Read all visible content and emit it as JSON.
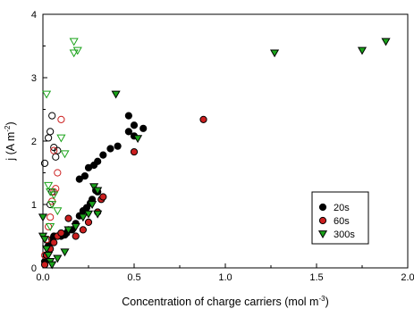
{
  "chart_data": {
    "type": "scatter",
    "xlabel": "Concentration of charge carriers (mol m",
    "xlabel_sup": "-3",
    "xlabel_end": ")",
    "ylabel": "j (A m",
    "ylabel_sup": "-2",
    "ylabel_end": ")",
    "xlim": [
      0,
      2.0
    ],
    "ylim": [
      0,
      4
    ],
    "xticks": [
      "0.0",
      "0.5",
      "1.0",
      "1.5",
      "2.0"
    ],
    "xtick_values": [
      0,
      0.5,
      1.0,
      1.5,
      2.0
    ],
    "yticks": [
      "0",
      "1",
      "2",
      "3",
      "4"
    ],
    "ytick_values": [
      0,
      1,
      2,
      3,
      4
    ],
    "legend_position": "right",
    "series": [
      {
        "name": "20s",
        "marker": "circle",
        "color": "#000000",
        "filled": [
          [
            0.01,
            0.1
          ],
          [
            0.02,
            0.2
          ],
          [
            0.03,
            0.35
          ],
          [
            0.05,
            0.45
          ],
          [
            0.06,
            0.5
          ],
          [
            0.08,
            0.5
          ],
          [
            0.1,
            0.5
          ],
          [
            0.12,
            0.52
          ],
          [
            0.13,
            0.55
          ],
          [
            0.14,
            0.6
          ],
          [
            0.16,
            0.6
          ],
          [
            0.18,
            0.7
          ],
          [
            0.2,
            0.82
          ],
          [
            0.22,
            0.9
          ],
          [
            0.24,
            0.95
          ],
          [
            0.26,
            1.02
          ],
          [
            0.27,
            1.08
          ],
          [
            0.29,
            1.22
          ],
          [
            0.3,
            1.2
          ],
          [
            0.2,
            1.4
          ],
          [
            0.23,
            1.45
          ],
          [
            0.25,
            1.58
          ],
          [
            0.28,
            1.62
          ],
          [
            0.3,
            1.68
          ],
          [
            0.33,
            1.78
          ],
          [
            0.37,
            1.88
          ],
          [
            0.41,
            1.92
          ],
          [
            0.47,
            2.15
          ],
          [
            0.5,
            2.08
          ],
          [
            0.5,
            2.25
          ],
          [
            0.47,
            2.4
          ],
          [
            0.55,
            2.2
          ]
        ],
        "open": [
          [
            0.01,
            1.65
          ],
          [
            0.03,
            2.05
          ],
          [
            0.04,
            2.15
          ],
          [
            0.05,
            2.4
          ],
          [
            0.06,
            1.9
          ],
          [
            0.07,
            1.75
          ],
          [
            0.08,
            1.85
          ],
          [
            0.05,
            1.2
          ],
          [
            0.04,
            1.0
          ]
        ]
      },
      {
        "name": "60s",
        "marker": "circle",
        "color": "#cc1f1f",
        "filled": [
          [
            0.01,
            0.05
          ],
          [
            0.02,
            0.2
          ],
          [
            0.04,
            0.3
          ],
          [
            0.06,
            0.4
          ],
          [
            0.08,
            0.5
          ],
          [
            0.1,
            0.55
          ],
          [
            0.14,
            0.78
          ],
          [
            0.18,
            0.5
          ],
          [
            0.22,
            0.6
          ],
          [
            0.25,
            0.72
          ],
          [
            0.3,
            0.88
          ],
          [
            0.32,
            1.08
          ],
          [
            0.33,
            1.12
          ],
          [
            0.5,
            1.83
          ],
          [
            0.88,
            2.34
          ]
        ],
        "open": [
          [
            0.01,
            0.2
          ],
          [
            0.02,
            0.45
          ],
          [
            0.03,
            0.65
          ],
          [
            0.04,
            0.8
          ],
          [
            0.05,
            1.05
          ],
          [
            0.06,
            1.2
          ],
          [
            0.07,
            1.25
          ],
          [
            0.08,
            1.5
          ],
          [
            0.06,
            1.85
          ],
          [
            0.1,
            2.34
          ]
        ]
      },
      {
        "name": "300s",
        "marker": "triangle-down",
        "color": "#1aa31a",
        "filled": [
          [
            0.0,
            0.5
          ],
          [
            0.0,
            0.8
          ],
          [
            0.01,
            0.45
          ],
          [
            0.02,
            0.3
          ],
          [
            0.03,
            0.2
          ],
          [
            0.04,
            0.1
          ],
          [
            0.05,
            0.05
          ],
          [
            0.08,
            0.15
          ],
          [
            0.12,
            0.25
          ],
          [
            0.14,
            0.6
          ],
          [
            0.18,
            0.65
          ],
          [
            0.22,
            0.8
          ],
          [
            0.25,
            0.85
          ],
          [
            0.27,
            1.0
          ],
          [
            0.28,
            1.28
          ],
          [
            0.3,
            1.22
          ],
          [
            0.3,
            0.85
          ],
          [
            0.4,
            2.74
          ],
          [
            0.52,
            2.04
          ],
          [
            1.27,
            3.39
          ],
          [
            1.75,
            3.43
          ],
          [
            1.88,
            3.57
          ]
        ],
        "open": [
          [
            0.02,
            2.74
          ],
          [
            0.03,
            1.3
          ],
          [
            0.04,
            1.2
          ],
          [
            0.04,
            0.65
          ],
          [
            0.05,
            1.0
          ],
          [
            0.06,
            1.15
          ],
          [
            0.08,
            0.9
          ],
          [
            0.1,
            2.05
          ],
          [
            0.17,
            3.57
          ],
          [
            0.17,
            3.39
          ],
          [
            0.19,
            3.43
          ],
          [
            0.12,
            1.8
          ]
        ]
      }
    ]
  }
}
